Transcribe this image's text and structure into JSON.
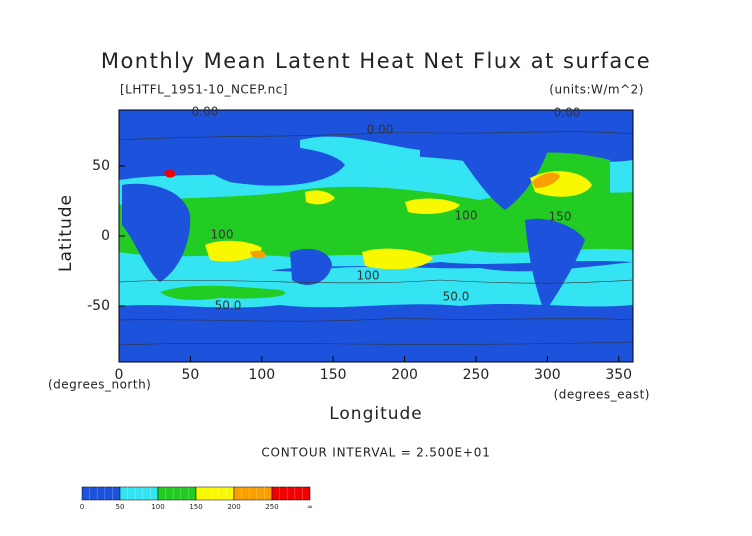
{
  "chart_data": {
    "type": "contour-map",
    "title": "Monthly Mean Latent Heat Net Flux at surface",
    "source": "[LHTFL_1951-10_NCEP.nc]",
    "units": "(units:W/m^2)",
    "xlabel": "Longitude",
    "ylabel": "Latitude",
    "x_unit": "(degrees_east)",
    "y_unit": "(degrees_north)",
    "xlim": [
      0,
      360
    ],
    "ylim": [
      -90,
      90
    ],
    "xticks": [
      0,
      50,
      100,
      150,
      200,
      250,
      300,
      350
    ],
    "yticks": [
      -50,
      0,
      50
    ],
    "contour_interval": "CONTOUR INTERVAL = 2.500E+01",
    "contour_labels": [
      "0.00",
      "0.00",
      "0.00",
      "50.0",
      "50.0",
      "100",
      "100",
      "100",
      "150"
    ],
    "colorbar": {
      "levels": [
        0,
        50,
        100,
        150,
        200,
        250
      ],
      "top_label": "∞",
      "colors": [
        "#1c52dc",
        "#34e4f2",
        "#22cc22",
        "#f8f800",
        "#f8a000",
        "#f00000"
      ]
    }
  }
}
